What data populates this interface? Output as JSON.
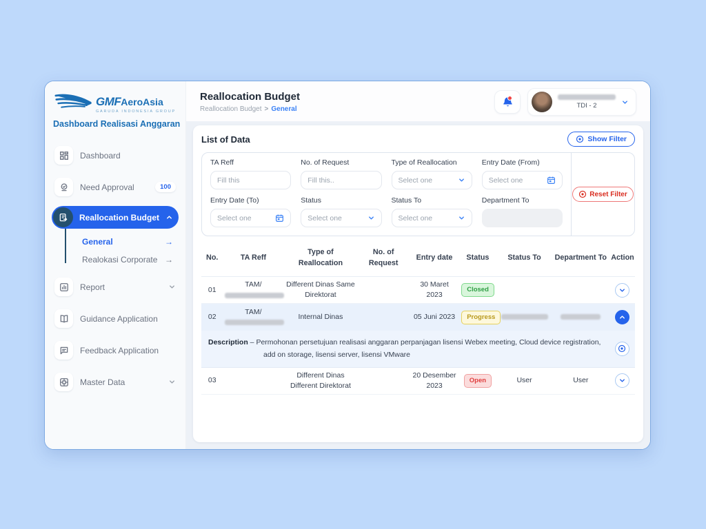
{
  "icons": {
    "arrow_right": "→",
    "breadcrumb_sep": ">"
  },
  "colors": {
    "accent": "#2563eb",
    "brand": "#1b6fb5",
    "navy_icon": "#24506e",
    "background": "#bed9fb",
    "status_green": "#2f9e44",
    "status_yellow": "#b99a1d",
    "status_red": "#e03e3e",
    "row_highlight": "#e9f1fc"
  },
  "sidebar": {
    "logo": {
      "gmf": "GMF",
      "aeroasia": "AeroAsia",
      "group": "GARUDA INDONESIA GROUP"
    },
    "app_title": "Dashboard Realisasi Anggaran",
    "items": [
      {
        "id": "dashboard",
        "label": "Dashboard",
        "icon": "dashboard-grid-icon"
      },
      {
        "id": "need-approval",
        "label": "Need Approval",
        "icon": "approval-icon",
        "badge": "100"
      },
      {
        "id": "reallocation-budget",
        "label": "Reallocation Budget",
        "icon": "reallocation-icon",
        "active": true,
        "chevron": "up",
        "children": [
          {
            "id": "general",
            "label": "General",
            "active": true
          },
          {
            "id": "realokasi-corporate",
            "label": "Realokasi Corporate",
            "active": false
          }
        ]
      },
      {
        "id": "report",
        "label": "Report",
        "icon": "report-icon",
        "chevron": "down"
      },
      {
        "id": "guidance-application",
        "label": "Guidance Application",
        "icon": "book-icon"
      },
      {
        "id": "feedback-application",
        "label": "Feedback Application",
        "icon": "feedback-icon"
      },
      {
        "id": "master-data",
        "label": "Master Data",
        "icon": "master-data-icon",
        "chevron": "down"
      }
    ]
  },
  "header": {
    "title": "Reallocation Budget",
    "breadcrumb": {
      "parent": "Reallocation Budget",
      "current": "General"
    },
    "user": {
      "name_redacted": true,
      "unit": "TDI - 2"
    }
  },
  "card": {
    "title": "List of Data",
    "show_filter": "Show Filter",
    "reset_filter": "Reset Filter"
  },
  "filters": [
    {
      "id": "ta-reff",
      "label": "TA Reff",
      "control": "input",
      "placeholder": "Fill this"
    },
    {
      "id": "no-of-request",
      "label": "No. of Request",
      "control": "input",
      "placeholder": "Fill this.."
    },
    {
      "id": "type-of-reallocation",
      "label": "Type of Reallocation",
      "control": "select",
      "value": "Select one"
    },
    {
      "id": "entry-date-from",
      "label": "Entry Date (From)",
      "control": "date",
      "value": "Select one"
    },
    {
      "id": "entry-date-to",
      "label": "Entry Date (To)",
      "control": "date",
      "value": "Select one"
    },
    {
      "id": "status",
      "label": "Status",
      "control": "select",
      "value": "Select one"
    },
    {
      "id": "status-to",
      "label": "Status To",
      "control": "select",
      "value": "Select one"
    },
    {
      "id": "department-to",
      "label": "Department To",
      "control": "disabled",
      "value": ""
    }
  ],
  "table": {
    "headers": [
      "No.",
      "TA Reff",
      "Type of Reallocation",
      "No. of Request",
      "Entry date",
      "Status",
      "Status To",
      "Department To",
      "Action"
    ],
    "rows": [
      {
        "no": "01",
        "ta_reff_line1": "TAM/",
        "ta_reff_redacted": true,
        "type": "Different Dinas Same Direktorat",
        "no_of_request": "",
        "entry_date": "30 Maret 2023",
        "status": "Closed",
        "status_variant": "green",
        "status_to": "",
        "status_to_redacted": false,
        "department_to": "",
        "department_to_redacted": false,
        "expanded": false
      },
      {
        "no": "02",
        "ta_reff_line1": "TAM/",
        "ta_reff_redacted": true,
        "type": "Internal Dinas",
        "no_of_request": "",
        "entry_date": "05 Juni 2023",
        "status": "Progress",
        "status_variant": "yellow",
        "status_to": "",
        "status_to_redacted": true,
        "department_to": "",
        "department_to_redacted": true,
        "expanded": true,
        "description": {
          "label": "Description",
          "separator": "–",
          "text": "Permohonan persetujuan realisasi anggaran perpanjagan lisensi Webex meeting, Cloud device registration, add on storage, lisensi server, lisensi VMware"
        }
      },
      {
        "no": "03",
        "ta_reff_line1": "",
        "ta_reff_redacted": false,
        "type": "Different Dinas Different Direktorat",
        "no_of_request": "",
        "entry_date": "20 Desember 2023",
        "status": "Open",
        "status_variant": "red",
        "status_to": "User",
        "status_to_redacted": false,
        "department_to": "User",
        "department_to_redacted": false,
        "expanded": false
      }
    ]
  }
}
